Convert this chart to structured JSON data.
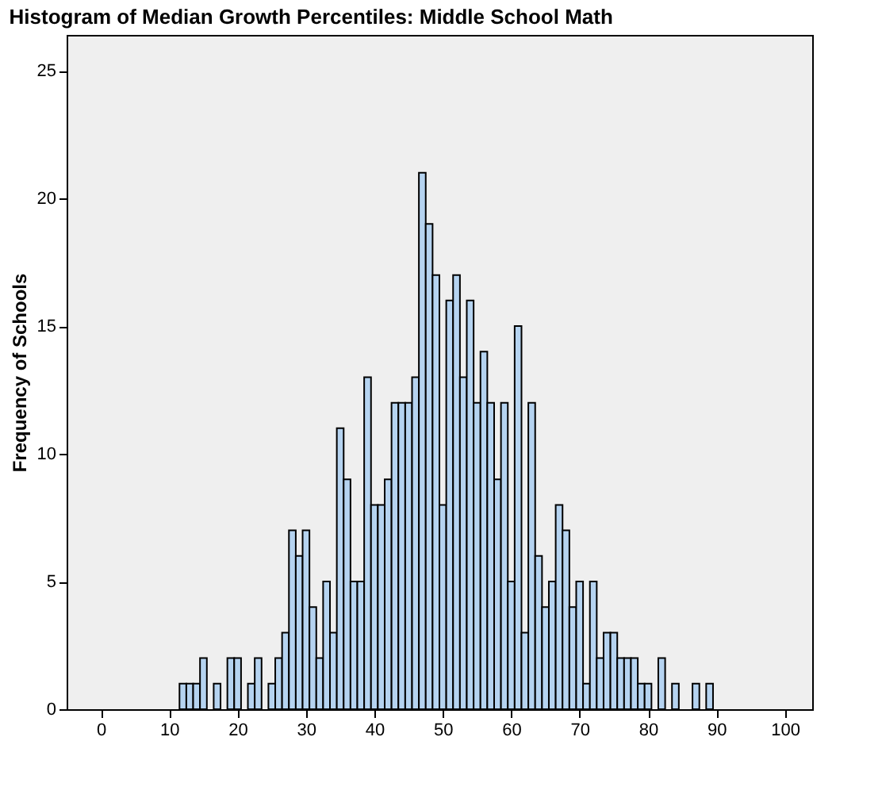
{
  "chart_data": {
    "type": "histogram",
    "title": "Histogram of Median Growth Percentiles: Middle School Math",
    "ylabel": "Frequency of Schools",
    "color": "#b5d3f0",
    "bins": [
      11.5,
      12.5,
      13.5,
      14.5,
      15.5,
      16.5,
      17.5,
      18.5,
      19.5,
      20.5,
      21.5,
      22.5,
      23.5,
      24.5,
      25.5,
      26.5,
      27.5,
      28.5,
      29.5,
      30.5,
      31.5,
      32.5,
      33.5,
      34.5,
      35.5,
      36.5,
      37.5,
      38.5,
      39.5,
      40.5,
      41.5,
      42.5,
      43.5,
      44.5,
      45.5,
      46.5,
      47.5,
      48.5,
      49.5,
      50.5,
      51.5,
      52.5,
      53.5,
      54.5,
      55.5,
      56.5,
      57.5,
      58.5,
      59.5,
      60.5,
      61.5,
      62.5,
      63.5,
      64.5,
      65.5,
      66.5,
      67.5,
      68.5,
      69.5,
      70.5,
      71.5,
      72.5,
      73.5,
      74.5,
      75.5,
      76.5,
      77.5,
      78.5,
      79.5,
      80.5,
      81.5,
      82.5,
      83.5,
      84.5,
      85.5,
      86.5,
      87.5,
      88.5,
      89.5
    ],
    "values": [
      1,
      1,
      1,
      2,
      0,
      1,
      0,
      2,
      2,
      0,
      1,
      2,
      0,
      1,
      2,
      3,
      7,
      6,
      7,
      4,
      2,
      5,
      3,
      11,
      9,
      5,
      5,
      13,
      8,
      8,
      9,
      12,
      12,
      12,
      13,
      21,
      19,
      17,
      8,
      16,
      17,
      13,
      16,
      12,
      14,
      12,
      9,
      12,
      5,
      15,
      3,
      12,
      6,
      4,
      5,
      8,
      7,
      4,
      5,
      1,
      5,
      2,
      3,
      3,
      2,
      2,
      2,
      1,
      1,
      0,
      2,
      0,
      1,
      0,
      0,
      1,
      0,
      1
    ],
    "xlim": [
      -5,
      104
    ],
    "xticks": [
      0,
      10,
      20,
      30,
      40,
      50,
      60,
      70,
      80,
      90,
      100
    ],
    "ylim": [
      0,
      26.4
    ],
    "yticks": [
      0,
      5,
      10,
      15,
      20,
      25
    ],
    "grid": false
  }
}
